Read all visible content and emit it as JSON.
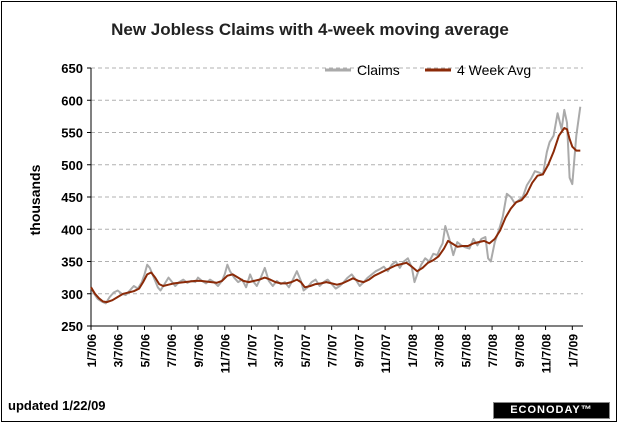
{
  "chart_data": {
    "type": "line",
    "title": "New Jobless Claims with 4-week moving average",
    "xlabel": "",
    "ylabel": "thousands",
    "ylim": [
      250,
      650
    ],
    "yticks": [
      250,
      300,
      350,
      400,
      450,
      500,
      550,
      600,
      650
    ],
    "grid": true,
    "legend_position": "top-right",
    "categories": [
      "1/7/06",
      "3/7/06",
      "5/7/06",
      "7/7/06",
      "9/7/06",
      "11/7/06",
      "1/7/07",
      "3/7/07",
      "5/7/07",
      "7/7/07",
      "9/7/07",
      "11/7/07",
      "1/7/08",
      "3/7/08",
      "5/7/08",
      "7/7/08",
      "9/7/08",
      "11/7/08",
      "1/7/09"
    ],
    "x_range": [
      0,
      18.4
    ],
    "series": [
      {
        "name": "Claims",
        "color": "#aaaaaa",
        "points": [
          [
            0,
            310
          ],
          [
            0.12,
            300
          ],
          [
            0.25,
            292
          ],
          [
            0.4,
            288
          ],
          [
            0.55,
            285
          ],
          [
            0.7,
            295
          ],
          [
            0.85,
            302
          ],
          [
            1,
            305
          ],
          [
            1.15,
            300
          ],
          [
            1.3,
            298
          ],
          [
            1.45,
            305
          ],
          [
            1.6,
            312
          ],
          [
            1.75,
            308
          ],
          [
            1.9,
            318
          ],
          [
            2.0,
            330
          ],
          [
            2.1,
            345
          ],
          [
            2.2,
            340
          ],
          [
            2.3,
            330
          ],
          [
            2.4,
            320
          ],
          [
            2.5,
            310
          ],
          [
            2.6,
            305
          ],
          [
            2.75,
            315
          ],
          [
            2.9,
            325
          ],
          [
            3.0,
            320
          ],
          [
            3.15,
            312
          ],
          [
            3.3,
            318
          ],
          [
            3.45,
            322
          ],
          [
            3.6,
            317
          ],
          [
            3.75,
            320
          ],
          [
            3.9,
            318
          ],
          [
            4.0,
            325
          ],
          [
            4.15,
            320
          ],
          [
            4.3,
            316
          ],
          [
            4.45,
            322
          ],
          [
            4.6,
            318
          ],
          [
            4.75,
            312
          ],
          [
            4.9,
            320
          ],
          [
            5.0,
            330
          ],
          [
            5.1,
            345
          ],
          [
            5.2,
            335
          ],
          [
            5.35,
            325
          ],
          [
            5.5,
            318
          ],
          [
            5.65,
            322
          ],
          [
            5.8,
            310
          ],
          [
            5.95,
            330
          ],
          [
            6.05,
            320
          ],
          [
            6.2,
            312
          ],
          [
            6.35,
            325
          ],
          [
            6.5,
            340
          ],
          [
            6.65,
            320
          ],
          [
            6.8,
            312
          ],
          [
            6.95,
            320
          ],
          [
            7.1,
            315
          ],
          [
            7.25,
            318
          ],
          [
            7.4,
            310
          ],
          [
            7.55,
            322
          ],
          [
            7.7,
            335
          ],
          [
            7.85,
            320
          ],
          [
            7.95,
            305
          ],
          [
            8.1,
            310
          ],
          [
            8.25,
            318
          ],
          [
            8.4,
            322
          ],
          [
            8.55,
            312
          ],
          [
            8.7,
            318
          ],
          [
            8.85,
            322
          ],
          [
            9.0,
            315
          ],
          [
            9.15,
            308
          ],
          [
            9.3,
            312
          ],
          [
            9.45,
            318
          ],
          [
            9.6,
            325
          ],
          [
            9.75,
            330
          ],
          [
            9.9,
            322
          ],
          [
            10.05,
            312
          ],
          [
            10.2,
            318
          ],
          [
            10.35,
            325
          ],
          [
            10.5,
            330
          ],
          [
            10.65,
            335
          ],
          [
            10.8,
            338
          ],
          [
            10.95,
            342
          ],
          [
            11.1,
            335
          ],
          [
            11.25,
            345
          ],
          [
            11.4,
            350
          ],
          [
            11.55,
            340
          ],
          [
            11.7,
            350
          ],
          [
            11.85,
            355
          ],
          [
            12.0,
            340
          ],
          [
            12.1,
            318
          ],
          [
            12.2,
            330
          ],
          [
            12.35,
            345
          ],
          [
            12.5,
            355
          ],
          [
            12.65,
            350
          ],
          [
            12.8,
            362
          ],
          [
            12.95,
            360
          ],
          [
            13.05,
            370
          ],
          [
            13.15,
            378
          ],
          [
            13.25,
            405
          ],
          [
            13.4,
            385
          ],
          [
            13.55,
            360
          ],
          [
            13.7,
            380
          ],
          [
            13.85,
            375
          ],
          [
            14.0,
            372
          ],
          [
            14.15,
            370
          ],
          [
            14.3,
            385
          ],
          [
            14.45,
            375
          ],
          [
            14.6,
            385
          ],
          [
            14.75,
            388
          ],
          [
            14.85,
            355
          ],
          [
            14.95,
            350
          ],
          [
            15.1,
            380
          ],
          [
            15.25,
            398
          ],
          [
            15.4,
            420
          ],
          [
            15.55,
            455
          ],
          [
            15.7,
            450
          ],
          [
            15.85,
            440
          ],
          [
            16.0,
            445
          ],
          [
            16.15,
            450
          ],
          [
            16.3,
            468
          ],
          [
            16.45,
            478
          ],
          [
            16.6,
            490
          ],
          [
            16.75,
            488
          ],
          [
            16.9,
            485
          ],
          [
            17.05,
            520
          ],
          [
            17.15,
            535
          ],
          [
            17.3,
            545
          ],
          [
            17.45,
            580
          ],
          [
            17.6,
            555
          ],
          [
            17.7,
            585
          ],
          [
            17.8,
            565
          ],
          [
            17.9,
            480
          ],
          [
            18.0,
            470
          ],
          [
            18.15,
            545
          ],
          [
            18.3,
            590
          ]
        ]
      },
      {
        "name": "4 Week Avg",
        "color": "#8b2a08",
        "points": [
          [
            0,
            310
          ],
          [
            0.15,
            300
          ],
          [
            0.3,
            293
          ],
          [
            0.45,
            288
          ],
          [
            0.6,
            287
          ],
          [
            0.8,
            290
          ],
          [
            1.0,
            295
          ],
          [
            1.2,
            300
          ],
          [
            1.4,
            302
          ],
          [
            1.6,
            304
          ],
          [
            1.8,
            308
          ],
          [
            1.95,
            318
          ],
          [
            2.1,
            330
          ],
          [
            2.25,
            333
          ],
          [
            2.4,
            325
          ],
          [
            2.55,
            315
          ],
          [
            2.7,
            312
          ],
          [
            2.9,
            314
          ],
          [
            3.1,
            316
          ],
          [
            3.3,
            317
          ],
          [
            3.5,
            318
          ],
          [
            3.7,
            319
          ],
          [
            3.9,
            320
          ],
          [
            4.1,
            320
          ],
          [
            4.3,
            319
          ],
          [
            4.5,
            318
          ],
          [
            4.7,
            317
          ],
          [
            4.9,
            320
          ],
          [
            5.1,
            328
          ],
          [
            5.3,
            330
          ],
          [
            5.5,
            325
          ],
          [
            5.7,
            320
          ],
          [
            5.9,
            318
          ],
          [
            6.1,
            320
          ],
          [
            6.3,
            322
          ],
          [
            6.5,
            325
          ],
          [
            6.7,
            322
          ],
          [
            6.9,
            318
          ],
          [
            7.1,
            316
          ],
          [
            7.3,
            316
          ],
          [
            7.5,
            318
          ],
          [
            7.7,
            322
          ],
          [
            7.85,
            318
          ],
          [
            8.0,
            310
          ],
          [
            8.2,
            312
          ],
          [
            8.4,
            315
          ],
          [
            8.6,
            316
          ],
          [
            8.8,
            318
          ],
          [
            9.0,
            316
          ],
          [
            9.2,
            314
          ],
          [
            9.4,
            316
          ],
          [
            9.6,
            320
          ],
          [
            9.8,
            324
          ],
          [
            10.0,
            320
          ],
          [
            10.2,
            318
          ],
          [
            10.4,
            322
          ],
          [
            10.6,
            328
          ],
          [
            10.8,
            332
          ],
          [
            11.0,
            336
          ],
          [
            11.2,
            340
          ],
          [
            11.4,
            344
          ],
          [
            11.6,
            346
          ],
          [
            11.8,
            348
          ],
          [
            12.0,
            342
          ],
          [
            12.2,
            335
          ],
          [
            12.4,
            340
          ],
          [
            12.6,
            348
          ],
          [
            12.8,
            352
          ],
          [
            13.0,
            358
          ],
          [
            13.2,
            370
          ],
          [
            13.35,
            382
          ],
          [
            13.5,
            378
          ],
          [
            13.7,
            373
          ],
          [
            13.9,
            374
          ],
          [
            14.1,
            374
          ],
          [
            14.3,
            378
          ],
          [
            14.5,
            380
          ],
          [
            14.7,
            382
          ],
          [
            14.9,
            378
          ],
          [
            15.1,
            385
          ],
          [
            15.3,
            398
          ],
          [
            15.5,
            418
          ],
          [
            15.7,
            432
          ],
          [
            15.9,
            442
          ],
          [
            16.1,
            445
          ],
          [
            16.3,
            455
          ],
          [
            16.5,
            472
          ],
          [
            16.7,
            483
          ],
          [
            16.9,
            485
          ],
          [
            17.1,
            500
          ],
          [
            17.3,
            520
          ],
          [
            17.5,
            545
          ],
          [
            17.7,
            557
          ],
          [
            17.8,
            555
          ],
          [
            17.9,
            540
          ],
          [
            18.0,
            528
          ],
          [
            18.15,
            522
          ],
          [
            18.3,
            522
          ]
        ]
      }
    ]
  },
  "footer": {
    "updated": "updated 1/22/09",
    "brand": "ECONODAY™"
  }
}
